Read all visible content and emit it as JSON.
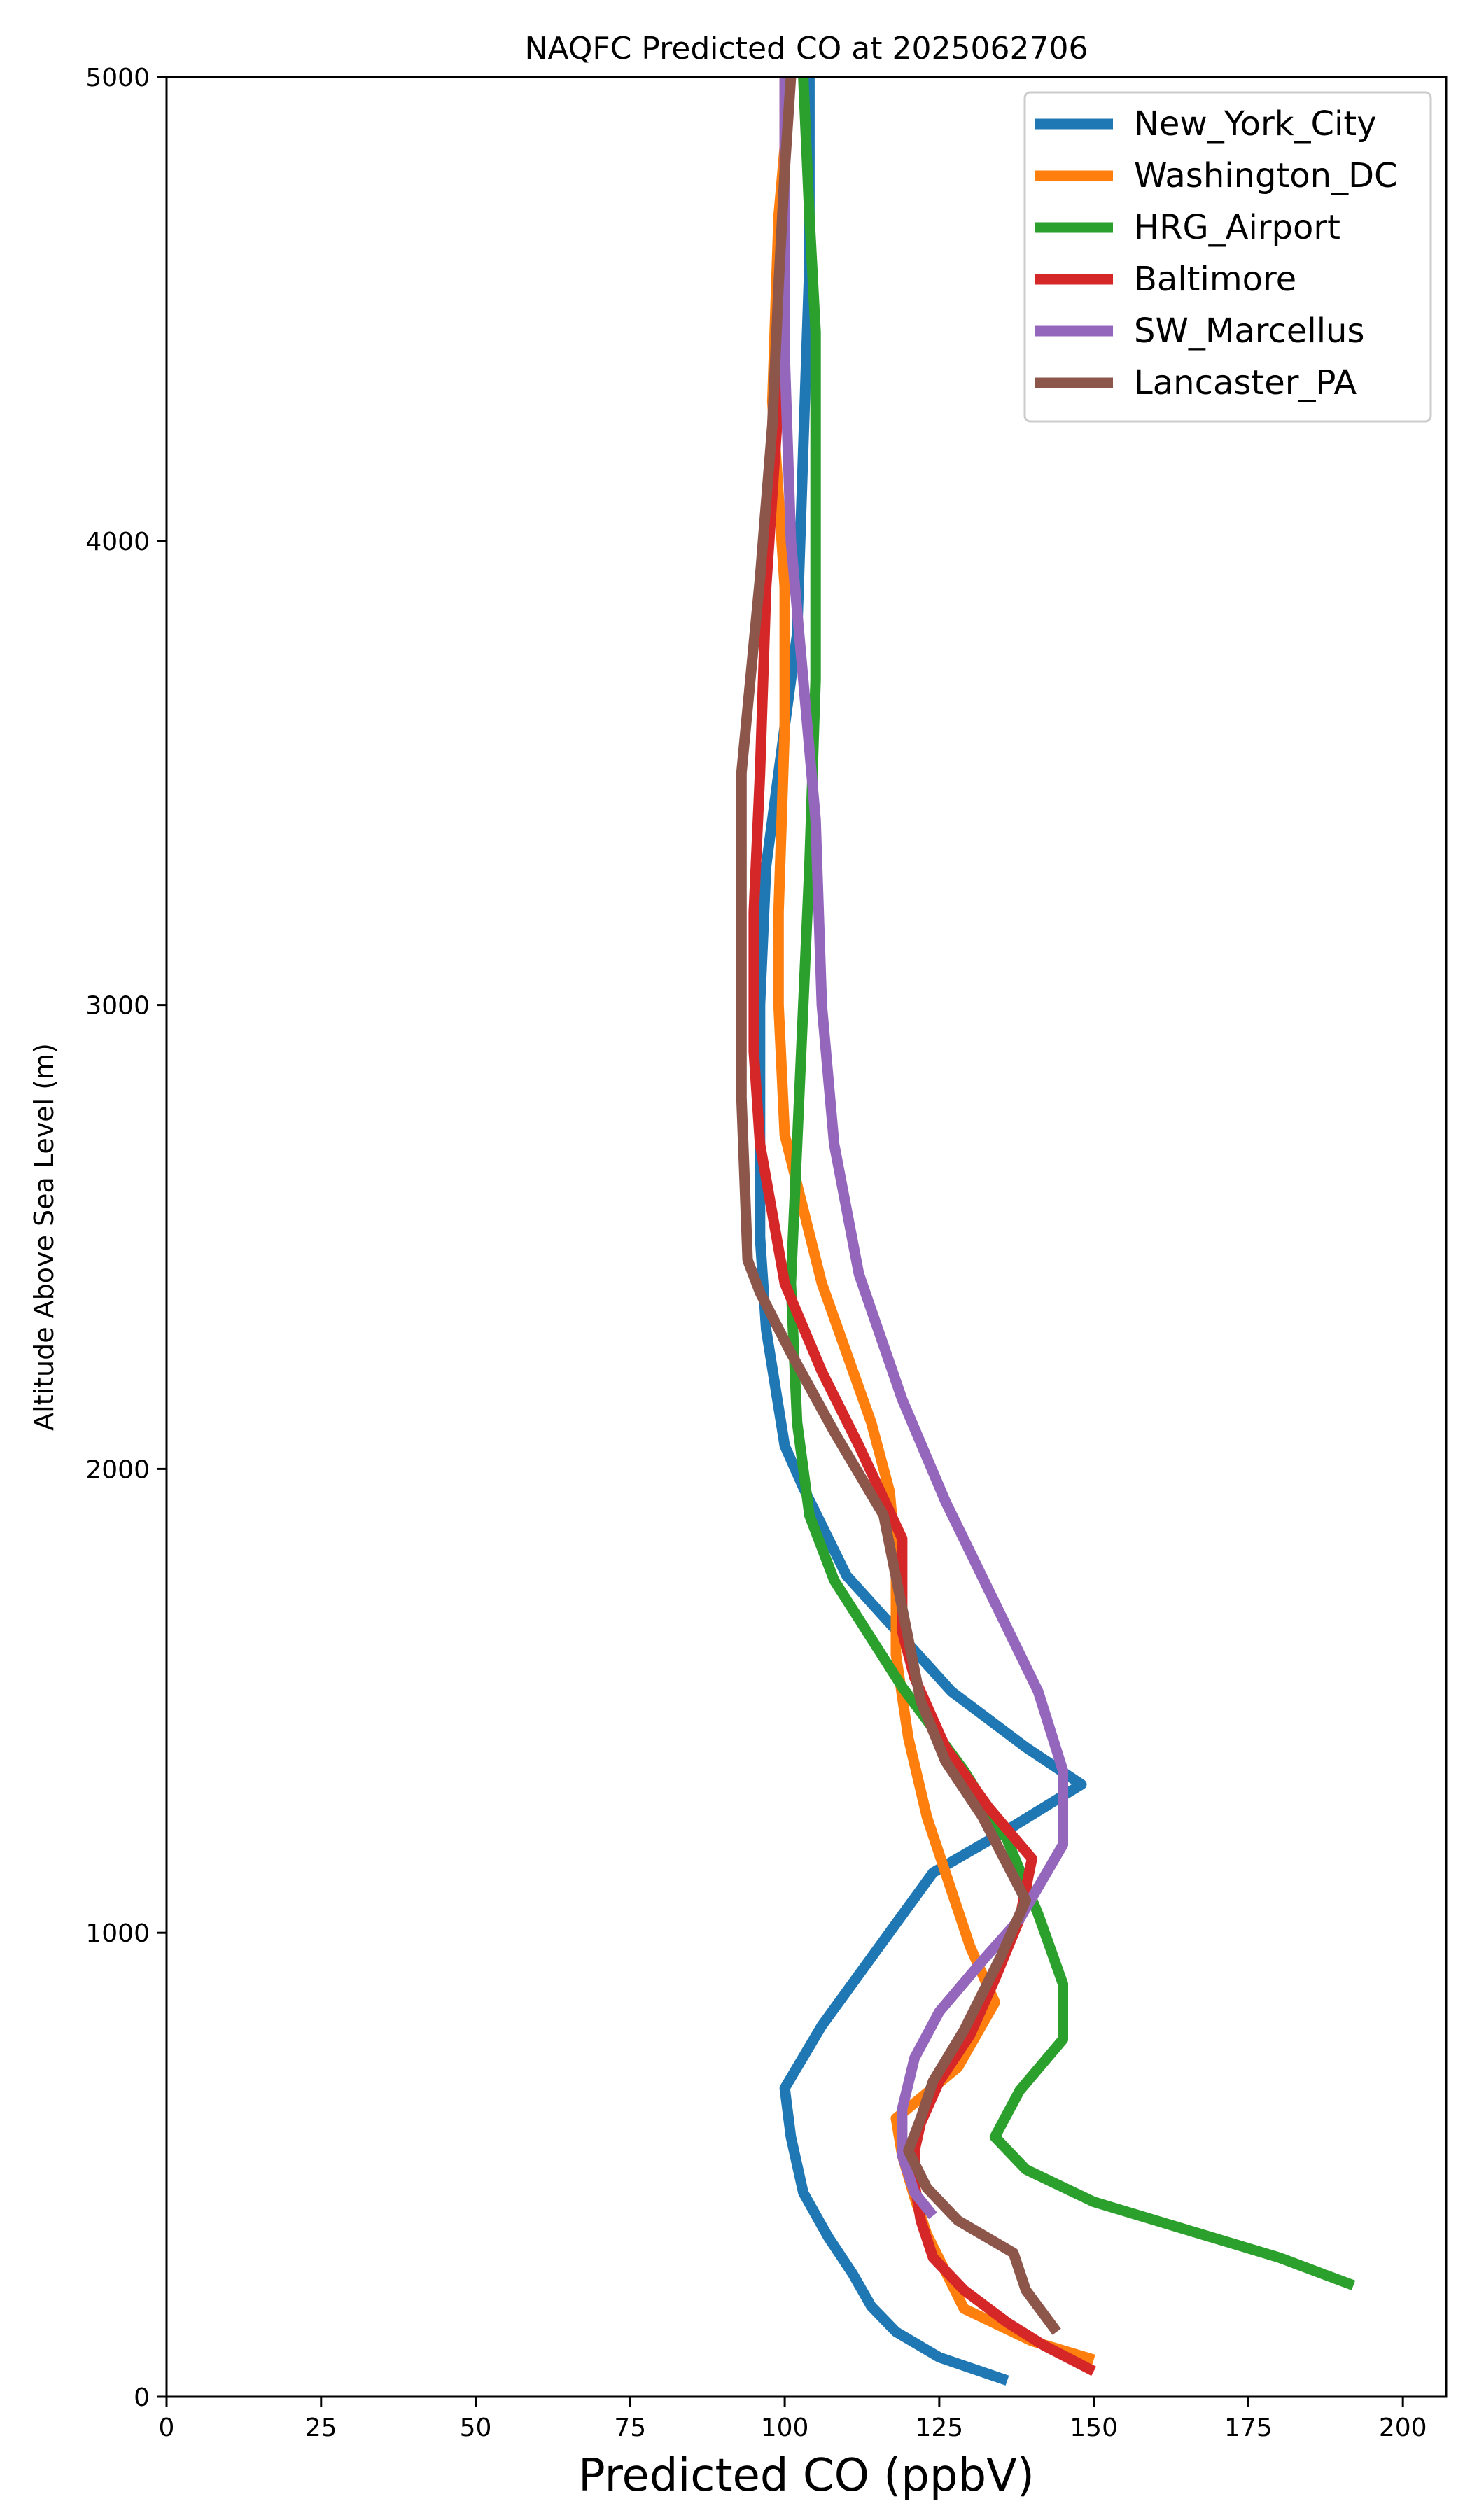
{
  "chart_data": {
    "type": "line",
    "title": "NAQFC Predicted CO at 2025062706",
    "xlabel": "Predicted CO (ppbV)",
    "ylabel": "Altitude Above Sea Level (m)",
    "xlim": [
      0,
      207
    ],
    "ylim": [
      0,
      5000
    ],
    "x_ticks": [
      0,
      25,
      50,
      75,
      100,
      125,
      150,
      175,
      200
    ],
    "y_ticks": [
      0,
      1000,
      2000,
      3000,
      4000,
      5000
    ],
    "grid": false,
    "legend_position": "top-right",
    "series": [
      {
        "name": "New_York_City",
        "color": "#1f77b4",
        "points": [
          [
            136,
            35
          ],
          [
            125,
            85
          ],
          [
            118,
            140
          ],
          [
            114,
            195
          ],
          [
            111,
            265
          ],
          [
            107,
            345
          ],
          [
            103,
            440
          ],
          [
            101,
            560
          ],
          [
            100,
            665
          ],
          [
            106,
            800
          ],
          [
            115,
            965
          ],
          [
            124,
            1130
          ],
          [
            137,
            1230
          ],
          [
            148,
            1320
          ],
          [
            139,
            1400
          ],
          [
            127,
            1520
          ],
          [
            110,
            1770
          ],
          [
            103,
            1960
          ],
          [
            100,
            2050
          ],
          [
            97,
            2300
          ],
          [
            96,
            2500
          ],
          [
            96,
            3000
          ],
          [
            97,
            3300
          ],
          [
            100,
            3600
          ],
          [
            102,
            3800
          ],
          [
            103,
            4200
          ],
          [
            104,
            4600
          ],
          [
            104,
            5000
          ]
        ]
      },
      {
        "name": "Washington_DC",
        "color": "#ff7f0e",
        "points": [
          [
            150,
            80
          ],
          [
            140,
            120
          ],
          [
            129,
            190
          ],
          [
            126,
            270
          ],
          [
            123,
            350
          ],
          [
            121,
            430
          ],
          [
            119,
            520
          ],
          [
            118,
            600
          ],
          [
            128,
            710
          ],
          [
            134,
            850
          ],
          [
            130,
            970
          ],
          [
            127,
            1090
          ],
          [
            123,
            1250
          ],
          [
            120,
            1420
          ],
          [
            118,
            1600
          ],
          [
            118,
            1800
          ],
          [
            117,
            1950
          ],
          [
            114,
            2100
          ],
          [
            106,
            2400
          ],
          [
            100,
            2720
          ],
          [
            99,
            3000
          ],
          [
            99,
            3200
          ],
          [
            100,
            3600
          ],
          [
            100,
            3900
          ],
          [
            98,
            4300
          ],
          [
            99,
            4700
          ],
          [
            101,
            5000
          ]
        ]
      },
      {
        "name": "HRG_Airport",
        "color": "#2ca02c",
        "points": [
          [
            192,
            240
          ],
          [
            180,
            300
          ],
          [
            165,
            360
          ],
          [
            150,
            420
          ],
          [
            139,
            490
          ],
          [
            134,
            560
          ],
          [
            138,
            660
          ],
          [
            145,
            770
          ],
          [
            145,
            890
          ],
          [
            141,
            1040
          ],
          [
            136,
            1200
          ],
          [
            129,
            1350
          ],
          [
            119,
            1530
          ],
          [
            108,
            1760
          ],
          [
            104,
            1900
          ],
          [
            102,
            2100
          ],
          [
            101,
            2400
          ],
          [
            102,
            2700
          ],
          [
            103,
            3000
          ],
          [
            104,
            3300
          ],
          [
            105,
            3700
          ],
          [
            105,
            4000
          ],
          [
            105,
            4450
          ],
          [
            104,
            4700
          ],
          [
            103,
            5000
          ]
        ]
      },
      {
        "name": "Baltimore",
        "color": "#d62728",
        "points": [
          [
            150,
            55
          ],
          [
            142,
            110
          ],
          [
            136,
            160
          ],
          [
            129,
            230
          ],
          [
            124,
            300
          ],
          [
            122,
            380
          ],
          [
            121,
            460
          ],
          [
            121,
            530
          ],
          [
            122,
            590
          ],
          [
            125,
            680
          ],
          [
            130,
            780
          ],
          [
            134,
            900
          ],
          [
            138,
            1030
          ],
          [
            140,
            1160
          ],
          [
            133,
            1270
          ],
          [
            126,
            1400
          ],
          [
            121,
            1550
          ],
          [
            119,
            1650
          ],
          [
            119,
            1850
          ],
          [
            112,
            2050
          ],
          [
            106,
            2210
          ],
          [
            100,
            2400
          ],
          [
            96,
            2700
          ],
          [
            95,
            2900
          ],
          [
            95,
            3200
          ],
          [
            96,
            3500
          ],
          [
            97,
            3900
          ],
          [
            99,
            4300
          ],
          [
            100,
            4700
          ],
          [
            100,
            5000
          ]
        ]
      },
      {
        "name": "SW_Marcellus",
        "color": "#9467bd",
        "points": [
          [
            124,
            390
          ],
          [
            121,
            440
          ],
          [
            119,
            520
          ],
          [
            119,
            620
          ],
          [
            121,
            730
          ],
          [
            125,
            830
          ],
          [
            132,
            940
          ],
          [
            138,
            1030
          ],
          [
            145,
            1190
          ],
          [
            145,
            1350
          ],
          [
            141,
            1520
          ],
          [
            126,
            1930
          ],
          [
            119,
            2150
          ],
          [
            112,
            2420
          ],
          [
            108,
            2700
          ],
          [
            106,
            3000
          ],
          [
            105,
            3400
          ],
          [
            103,
            3700
          ],
          [
            101,
            4000
          ],
          [
            100,
            4400
          ],
          [
            100,
            4700
          ],
          [
            100,
            5000
          ]
        ]
      },
      {
        "name": "Lancaster_PA",
        "color": "#8c564b",
        "points": [
          [
            144,
            140
          ],
          [
            139,
            230
          ],
          [
            137,
            310
          ],
          [
            128,
            380
          ],
          [
            123,
            450
          ],
          [
            120,
            530
          ],
          [
            122,
            600
          ],
          [
            124,
            680
          ],
          [
            129,
            790
          ],
          [
            135,
            950
          ],
          [
            139,
            1070
          ],
          [
            132,
            1250
          ],
          [
            126,
            1370
          ],
          [
            122,
            1500
          ],
          [
            119,
            1700
          ],
          [
            116,
            1900
          ],
          [
            108,
            2080
          ],
          [
            101,
            2250
          ],
          [
            96,
            2380
          ],
          [
            94,
            2450
          ],
          [
            93,
            2800
          ],
          [
            93,
            3100
          ],
          [
            93,
            3500
          ],
          [
            96,
            3920
          ],
          [
            98,
            4250
          ],
          [
            99,
            4550
          ],
          [
            100,
            4800
          ],
          [
            101,
            5000
          ]
        ]
      }
    ]
  }
}
